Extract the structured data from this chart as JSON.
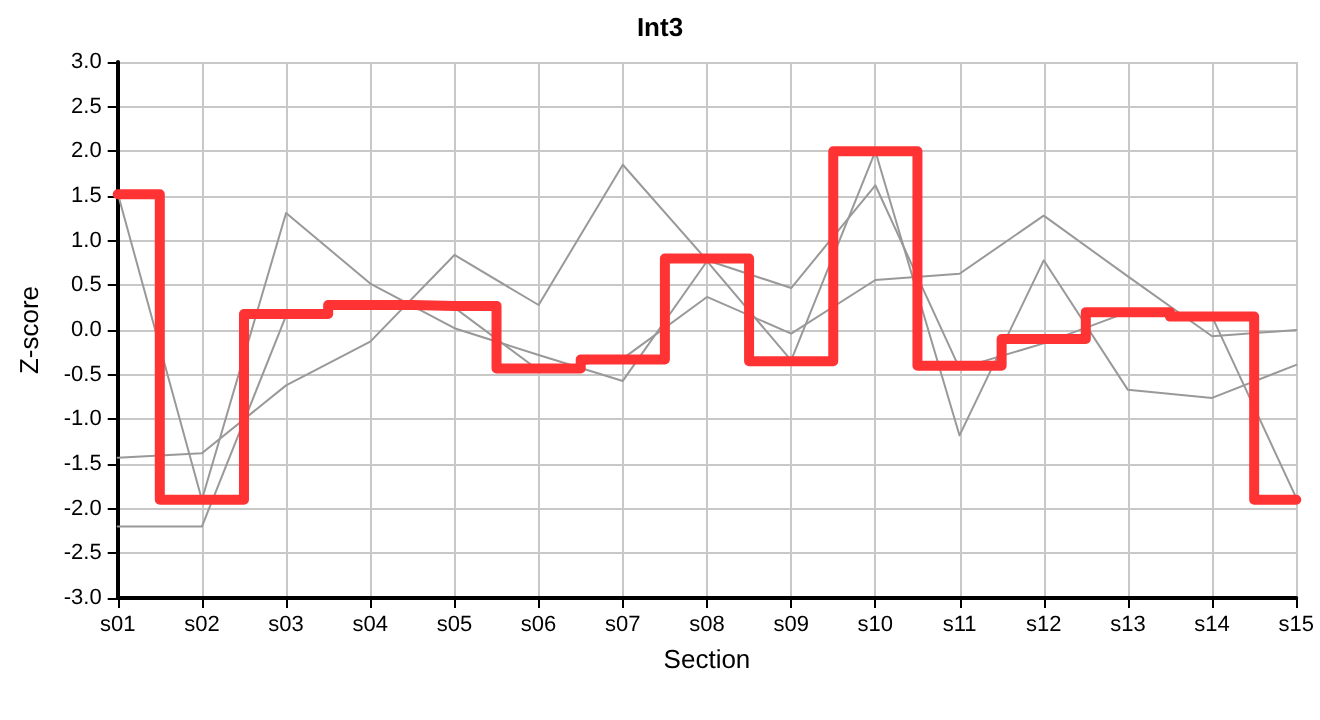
{
  "chart_data": {
    "type": "line",
    "title": "Int3",
    "xlabel": "Section",
    "ylabel": "Z-score",
    "categories": [
      "s01",
      "s02",
      "s03",
      "s04",
      "s05",
      "s06",
      "s07",
      "s08",
      "s09",
      "s10",
      "s11",
      "s12",
      "s13",
      "s14",
      "s15"
    ],
    "series": [
      {
        "color": "#999999",
        "values": [
          1.53,
          -1.9,
          1.31,
          0.52,
          0.02,
          -0.28,
          -0.57,
          0.77,
          -0.34,
          2.0,
          -1.18,
          0.78,
          -0.67,
          -0.76,
          -0.39
        ]
      },
      {
        "color": "#999999",
        "values": [
          -1.43,
          -1.38,
          -0.62,
          -0.13,
          0.84,
          0.28,
          1.85,
          0.78,
          0.47,
          1.62,
          -0.43,
          -0.15,
          0.2,
          0.15,
          -1.88
        ]
      },
      {
        "color": "#999999",
        "values": [
          -2.2,
          -2.2,
          0.16,
          0.3,
          0.25,
          -0.45,
          -0.32,
          0.37,
          -0.04,
          0.56,
          0.63,
          1.28,
          0.6,
          -0.07,
          0.0
        ]
      },
      {
        "type": "step",
        "color": "#ff3333",
        "values": [
          1.52,
          -1.9,
          0.18,
          0.28,
          0.27,
          -0.43,
          -0.33,
          0.8,
          -0.35,
          2.0,
          -0.4,
          -0.1,
          0.2,
          0.15,
          -1.9
        ]
      }
    ],
    "ylim": [
      -3,
      3
    ],
    "yticks": [
      {
        "value": -3,
        "label": "-3.0"
      },
      {
        "value": -2.5,
        "label": "-2.5"
      },
      {
        "value": -2,
        "label": "-2.0"
      },
      {
        "value": -1.5,
        "label": "-1.5"
      },
      {
        "value": -1,
        "label": "-1.0"
      },
      {
        "value": -0.5,
        "label": "-0.5"
      },
      {
        "value": 0,
        "label": "0.0"
      },
      {
        "value": 0.5,
        "label": "0.5"
      },
      {
        "value": 1,
        "label": "1.0"
      },
      {
        "value": 1.5,
        "label": "1.5"
      },
      {
        "value": 2,
        "label": "2.0"
      },
      {
        "value": 2.5,
        "label": "2.5"
      },
      {
        "value": 3,
        "label": "3.0"
      }
    ],
    "grid": true,
    "marker": "none"
  }
}
